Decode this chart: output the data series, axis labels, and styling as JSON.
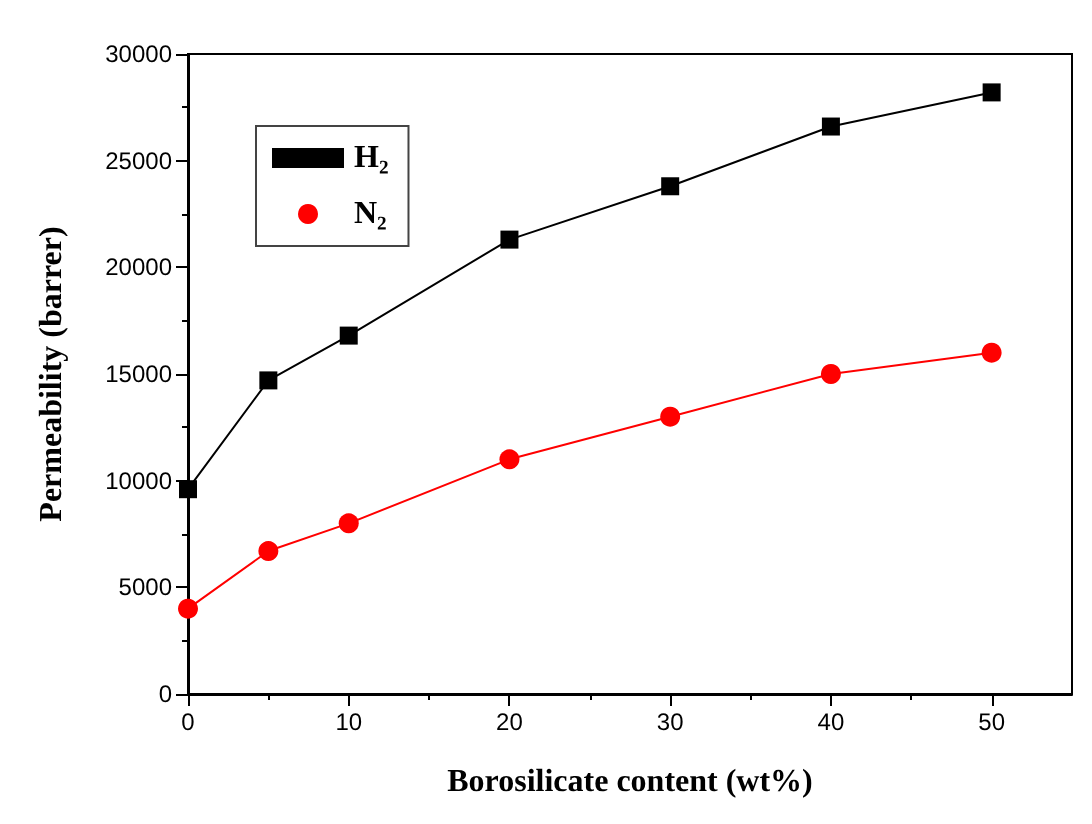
{
  "chart_data": {
    "type": "line",
    "xlabel": "Borosilicate content (wt%)",
    "ylabel": "Permeability (barrer)",
    "x": [
      0,
      5,
      10,
      20,
      30,
      40,
      50
    ],
    "series": [
      {
        "name": "H₂",
        "color": "#000000",
        "marker": "square",
        "values": [
          9600,
          14700,
          16800,
          21300,
          23800,
          26600,
          28200
        ]
      },
      {
        "name": "N₂",
        "color": "#ff0000",
        "marker": "circle",
        "values": [
          4000,
          6700,
          8000,
          11000,
          13000,
          15000,
          16000
        ]
      }
    ],
    "xlim": [
      0,
      55
    ],
    "xticks": [
      0,
      10,
      20,
      30,
      40,
      50
    ],
    "ylim": [
      0,
      30000
    ],
    "yticks": [
      0,
      5000,
      10000,
      15000,
      20000,
      25000,
      30000
    ],
    "grid": false,
    "legend": "top left",
    "line_style": "solid"
  }
}
